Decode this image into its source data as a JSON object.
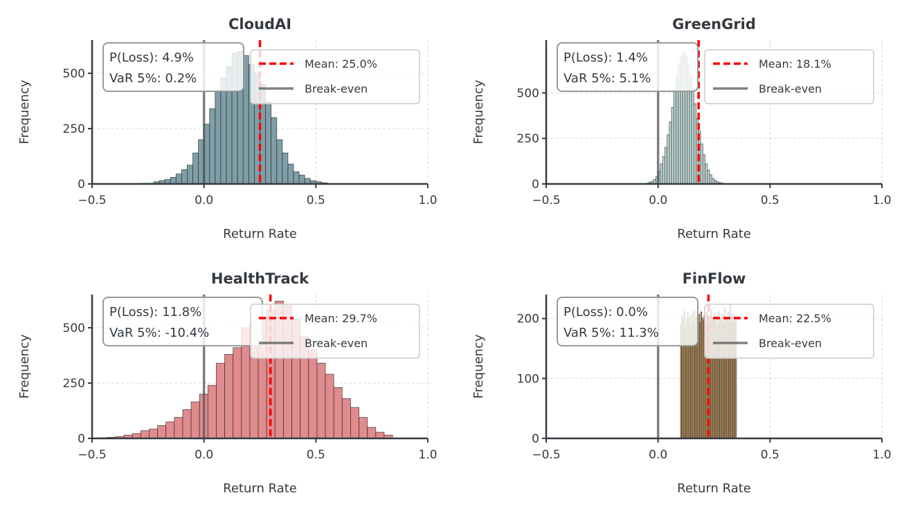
{
  "colors": {
    "text": "#343a40",
    "axis": "#343a40",
    "grid": "#d9d9d9",
    "mean_line": "#ff0000",
    "breakeven_line": "#555555",
    "bar_edge": "#222222"
  },
  "chart_data": [
    {
      "type": "bar",
      "subtype": "histogram",
      "title": "CloudAI",
      "xlabel": "Return Rate",
      "ylabel": "Frequency",
      "xlim": [
        -0.5,
        1.0
      ],
      "ylim": [
        0,
        650
      ],
      "xticks": [
        -0.5,
        0.0,
        0.5,
        1.0
      ],
      "xtick_labels": [
        "−0.5",
        "0.0",
        "0.5",
        "1.0"
      ],
      "yticks": [
        0,
        250,
        500
      ],
      "ytick_labels": [
        "0",
        "250",
        "500"
      ],
      "grid": true,
      "bar_color": "#7f9ea8",
      "bin_start": -0.325,
      "bin_width": 0.025,
      "counts": [
        2,
        2,
        3,
        3,
        10,
        15,
        20,
        30,
        45,
        65,
        85,
        140,
        200,
        270,
        340,
        420,
        480,
        530,
        590,
        600,
        580,
        540,
        500,
        450,
        370,
        300,
        200,
        140,
        90,
        55,
        40,
        25,
        15,
        10,
        5,
        2,
        2
      ],
      "mean": 0.25,
      "breakeven": 0.0,
      "stats": [
        "P(Loss): 4.9%",
        "VaR 5%: 0.2%"
      ],
      "legend": [
        "Mean: 25.0%",
        "Break-even"
      ],
      "legend_position": "upper-right"
    },
    {
      "type": "bar",
      "subtype": "histogram",
      "title": "GreenGrid",
      "xlabel": "Return Rate",
      "ylabel": "Frequency",
      "xlim": [
        -0.5,
        1.0
      ],
      "ylim": [
        0,
        790
      ],
      "xticks": [
        -0.5,
        0.0,
        0.5,
        1.0
      ],
      "xtick_labels": [
        "−0.5",
        "0.0",
        "0.5",
        "1.0"
      ],
      "yticks": [
        0,
        250,
        500
      ],
      "ytick_labels": [
        "0",
        "250",
        "500"
      ],
      "grid": true,
      "bar_color": "#c2dcd9",
      "bin_start": -0.06,
      "bin_width": 0.01,
      "counts": [
        3,
        5,
        10,
        15,
        25,
        40,
        70,
        110,
        150,
        200,
        270,
        340,
        420,
        510,
        590,
        660,
        700,
        720,
        700,
        650,
        590,
        520,
        440,
        360,
        290,
        220,
        160,
        110,
        75,
        50,
        30,
        20,
        12,
        8,
        5,
        3
      ],
      "mean": 0.181,
      "breakeven": 0.0,
      "stats": [
        "P(Loss): 1.4%",
        "VaR 5%: 5.1%"
      ],
      "legend": [
        "Mean: 18.1%",
        "Break-even"
      ],
      "legend_position": "upper-right"
    },
    {
      "type": "bar",
      "subtype": "histogram",
      "title": "HealthTrack",
      "xlabel": "Return Rate",
      "ylabel": "Frequency",
      "xlim": [
        -0.5,
        1.0
      ],
      "ylim": [
        0,
        650
      ],
      "xticks": [
        -0.5,
        0.0,
        0.5,
        1.0
      ],
      "xtick_labels": [
        "−0.5",
        "0.0",
        "0.5",
        "1.0"
      ],
      "yticks": [
        0,
        250,
        500
      ],
      "ytick_labels": [
        "0",
        "250",
        "500"
      ],
      "grid": true,
      "bar_color": "#e08b8e",
      "bin_start": -0.47,
      "bin_width": 0.0375,
      "counts": [
        3,
        5,
        8,
        15,
        22,
        35,
        42,
        58,
        75,
        95,
        130,
        165,
        200,
        240,
        340,
        380,
        410,
        500,
        520,
        550,
        580,
        620,
        600,
        540,
        460,
        400,
        340,
        290,
        230,
        180,
        140,
        95,
        50,
        28,
        15
      ],
      "mean": 0.297,
      "breakeven": 0.0,
      "stats": [
        "P(Loss): 11.8%",
        "VaR 5%: -10.4%"
      ],
      "legend": [
        "Mean: 29.7%",
        "Break-even"
      ],
      "legend_position": "upper-right"
    },
    {
      "type": "bar",
      "subtype": "histogram",
      "title": "FinFlow",
      "xlabel": "Return Rate",
      "ylabel": "Frequency",
      "xlim": [
        -0.5,
        1.0
      ],
      "ylim": [
        0,
        240
      ],
      "xticks": [
        -0.5,
        0.0,
        0.5,
        1.0
      ],
      "xtick_labels": [
        "−0.5",
        "0.0",
        "0.5",
        "1.0"
      ],
      "yticks": [
        0,
        100,
        200
      ],
      "ytick_labels": [
        "0",
        "100",
        "200"
      ],
      "grid": true,
      "bar_color": "#d8ad70",
      "bin_start": 0.1,
      "bin_width": 0.005,
      "counts": [
        190,
        205,
        198,
        212,
        185,
        200,
        210,
        195,
        202,
        190,
        208,
        196,
        214,
        188,
        203,
        199,
        207,
        193,
        211,
        201,
        196,
        205,
        189,
        210,
        198,
        204,
        192,
        215,
        200,
        197,
        209,
        194,
        205,
        188,
        212,
        201,
        199,
        206,
        191,
        218,
        203,
        197,
        210,
        195,
        224,
        200,
        208,
        193,
        205,
        198
      ],
      "mean": 0.225,
      "breakeven": 0.0,
      "stats": [
        "P(Loss): 0.0%",
        "VaR 5%: 11.3%"
      ],
      "legend": [
        "Mean: 22.5%",
        "Break-even"
      ],
      "legend_position": "upper-right"
    }
  ]
}
